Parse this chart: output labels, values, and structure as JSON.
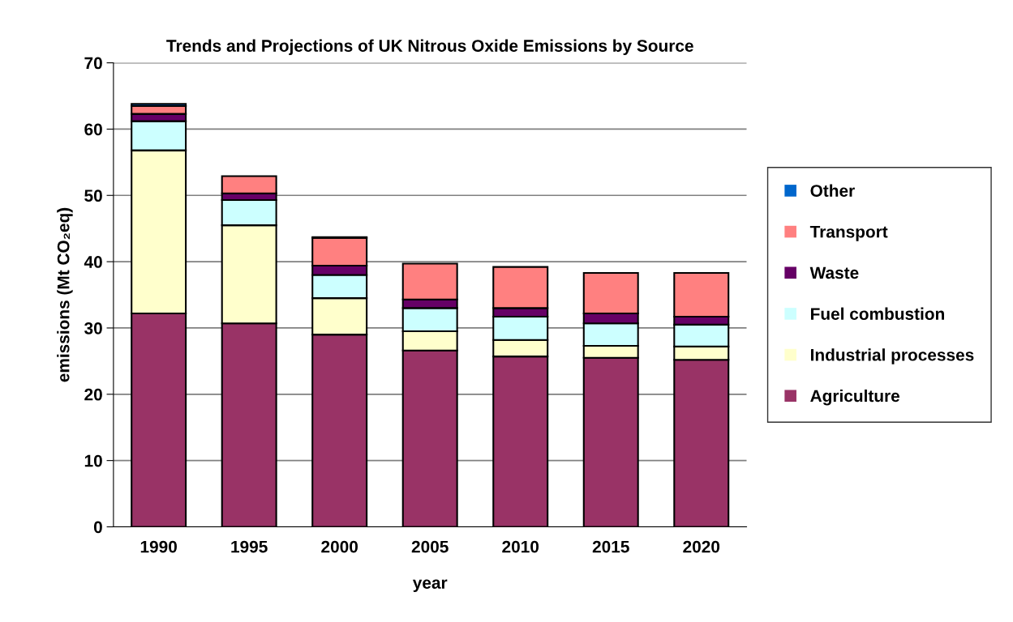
{
  "chart_data": {
    "type": "bar",
    "stacked": true,
    "title": "Trends and Projections of UK Nitrous Oxide Emissions by Source",
    "xlabel": "year",
    "ylabel": "emissions (Mt CO₂eq)",
    "categories": [
      "1990",
      "1995",
      "2000",
      "2005",
      "2010",
      "2015",
      "2020"
    ],
    "series": [
      {
        "name": "Agriculture",
        "color": "#993366",
        "values": [
          32.2,
          30.7,
          29.0,
          26.6,
          25.7,
          25.5,
          25.2
        ]
      },
      {
        "name": "Industrial processes",
        "color": "#ffffcc",
        "values": [
          24.6,
          14.8,
          5.5,
          2.9,
          2.5,
          1.8,
          2.0
        ]
      },
      {
        "name": "Fuel combustion",
        "color": "#ccffff",
        "values": [
          4.4,
          3.8,
          3.5,
          3.5,
          3.5,
          3.4,
          3.3
        ]
      },
      {
        "name": "Waste",
        "color": "#660066",
        "values": [
          1.1,
          1.0,
          1.4,
          1.3,
          1.3,
          1.5,
          1.2
        ]
      },
      {
        "name": "Transport",
        "color": "#ff8080",
        "values": [
          1.2,
          2.6,
          4.2,
          5.4,
          6.2,
          6.1,
          6.6
        ]
      },
      {
        "name": "Other",
        "color": "#0066cc",
        "values": [
          0.3,
          null,
          0.1,
          null,
          null,
          null,
          null
        ]
      }
    ],
    "ylim": [
      0,
      70
    ],
    "yticks": [
      0,
      10,
      20,
      30,
      40,
      50,
      60,
      70
    ],
    "grid": "y",
    "legend": "right"
  }
}
